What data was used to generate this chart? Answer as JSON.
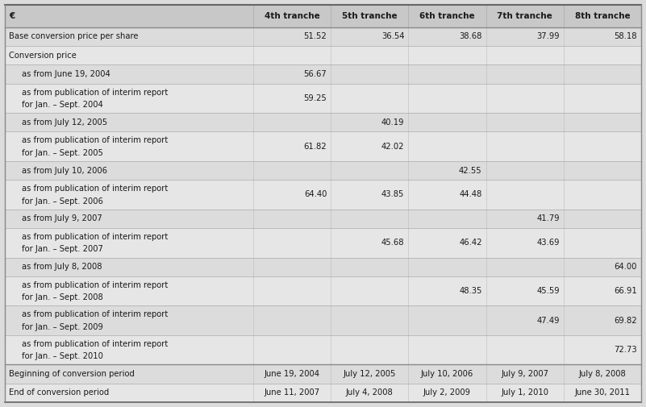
{
  "title_col": "€",
  "columns": [
    "4th tranche",
    "5th tranche",
    "6th tranche",
    "7th tranche",
    "8th tranche"
  ],
  "bg_color": "#dcdcdc",
  "header_bg": "#c8c8c8",
  "border_dark": "#888888",
  "border_light": "#aaaaaa",
  "rows": [
    {
      "label": "Base conversion price per share",
      "values": [
        "51.52",
        "36.54",
        "38.68",
        "37.99",
        "58.18"
      ],
      "bold": false,
      "indent": 0,
      "multiline": false
    },
    {
      "label": "Conversion price",
      "values": [
        "",
        "",
        "",
        "",
        ""
      ],
      "bold": false,
      "indent": 0,
      "multiline": false
    },
    {
      "label": "as from June 19, 2004",
      "values": [
        "56.67",
        "",
        "",
        "",
        ""
      ],
      "bold": false,
      "indent": 1,
      "multiline": false
    },
    {
      "label": "as from publication of interim report",
      "label2": "for Jan. – Sept. 2004",
      "values": [
        "59.25",
        "",
        "",
        "",
        ""
      ],
      "bold": false,
      "indent": 1,
      "multiline": true
    },
    {
      "label": "as from July 12, 2005",
      "values": [
        "",
        "40.19",
        "",
        "",
        ""
      ],
      "bold": false,
      "indent": 1,
      "multiline": false
    },
    {
      "label": "as from publication of interim report",
      "label2": "for Jan. – Sept. 2005",
      "values": [
        "61.82",
        "42.02",
        "",
        "",
        ""
      ],
      "bold": false,
      "indent": 1,
      "multiline": true
    },
    {
      "label": "as from July 10, 2006",
      "values": [
        "",
        "",
        "42.55",
        "",
        ""
      ],
      "bold": false,
      "indent": 1,
      "multiline": false
    },
    {
      "label": "as from publication of interim report",
      "label2": "for Jan. – Sept. 2006",
      "values": [
        "64.40",
        "43.85",
        "44.48",
        "",
        ""
      ],
      "bold": false,
      "indent": 1,
      "multiline": true
    },
    {
      "label": "as from July 9, 2007",
      "values": [
        "",
        "",
        "",
        "41.79",
        ""
      ],
      "bold": false,
      "indent": 1,
      "multiline": false
    },
    {
      "label": "as from publication of interim report",
      "label2": "for Jan. – Sept. 2007",
      "values": [
        "",
        "45.68",
        "46.42",
        "43.69",
        ""
      ],
      "bold": false,
      "indent": 1,
      "multiline": true
    },
    {
      "label": "as from July 8, 2008",
      "values": [
        "",
        "",
        "",
        "",
        "64.00"
      ],
      "bold": false,
      "indent": 1,
      "multiline": false
    },
    {
      "label": "as from publication of interim report",
      "label2": "for Jan. – Sept. 2008",
      "values": [
        "",
        "",
        "48.35",
        "45.59",
        "66.91"
      ],
      "bold": false,
      "indent": 1,
      "multiline": true
    },
    {
      "label": "as from publication of interim report",
      "label2": "for Jan. – Sept. 2009",
      "values": [
        "",
        "",
        "",
        "47.49",
        "69.82"
      ],
      "bold": false,
      "indent": 1,
      "multiline": true
    },
    {
      "label": "as from publication of interim report",
      "label2": "for Jan. – Sept. 2010",
      "values": [
        "",
        "",
        "",
        "",
        "72.73"
      ],
      "bold": false,
      "indent": 1,
      "multiline": true
    },
    {
      "label": "Beginning of conversion period",
      "values": [
        "June 19, 2004",
        "July 12, 2005",
        "July 10, 2006",
        "July 9, 2007",
        "July 8, 2008"
      ],
      "bold": false,
      "indent": 0,
      "multiline": false,
      "thick_top": true
    },
    {
      "label": "End of conversion period",
      "values": [
        "June 11, 2007",
        "July 4, 2008",
        "July 2, 2009",
        "July 1, 2010",
        "June 30, 2011"
      ],
      "bold": false,
      "indent": 0,
      "multiline": false
    }
  ]
}
